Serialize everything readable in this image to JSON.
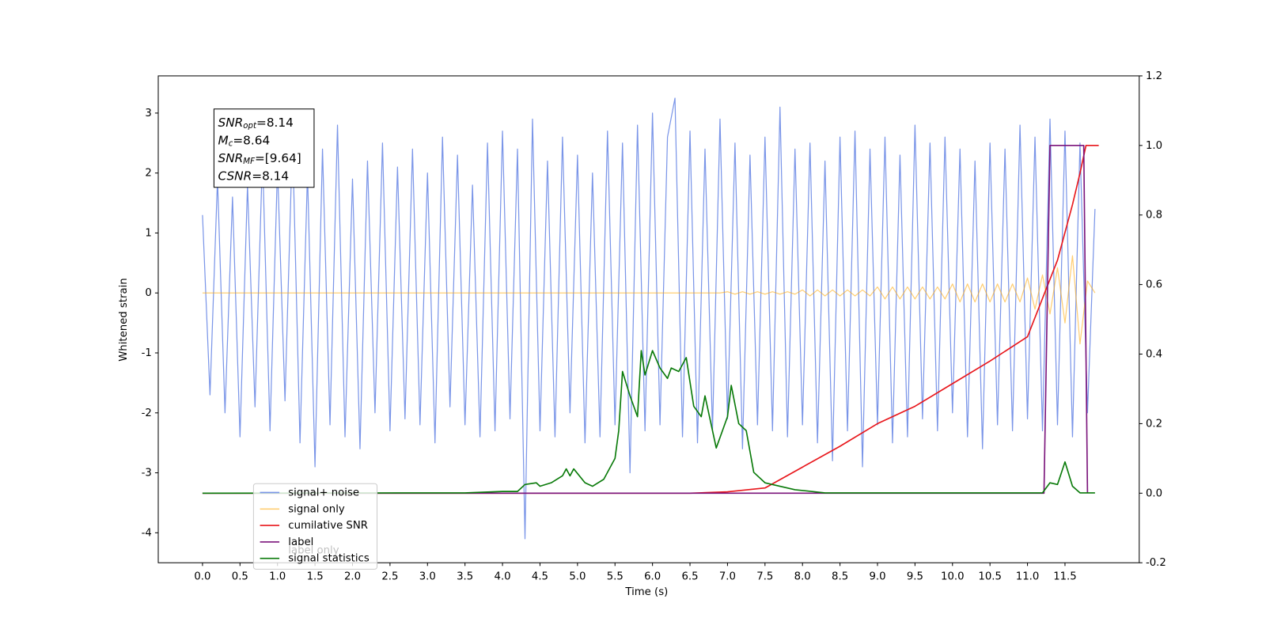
{
  "chart_data": {
    "type": "line",
    "xlabel": "Time (s)",
    "ylabel": "Whitened strain",
    "xlim": [
      -0.59,
      12.49
    ],
    "ylim": [
      -4.5,
      3.62
    ],
    "y2lim": [
      -0.2,
      1.2
    ],
    "xticks": [
      {
        "value": 0,
        "label": "0.0"
      },
      0.5,
      {
        "value": 1,
        "label": "1.0"
      },
      1.5,
      {
        "value": 2,
        "label": "2.0"
      },
      2.5,
      {
        "value": 3,
        "label": "3.0"
      },
      3.5,
      {
        "value": 4,
        "label": "4.0"
      },
      4.5,
      {
        "value": 5,
        "label": "5.0"
      },
      5.5,
      {
        "value": 6,
        "label": "6.0"
      },
      6.5,
      {
        "value": 7,
        "label": "7.0"
      },
      7.5,
      {
        "value": 8,
        "label": "8.0"
      },
      8.5,
      {
        "value": 9,
        "label": "9.0"
      },
      9.5,
      {
        "value": 10,
        "label": "10.0"
      },
      10.5,
      {
        "value": 11,
        "label": "11.0"
      },
      11.5
    ],
    "yticks": [
      -4,
      -3,
      -2,
      -1,
      0,
      1,
      2,
      3
    ],
    "y2ticks": [
      -0.2,
      {
        "value": 0,
        "label": "0.0"
      },
      0.2,
      0.4,
      0.6,
      0.8,
      {
        "value": 1,
        "label": "1.0"
      },
      1.2
    ],
    "legend": "lower left",
    "legend_hidden_text": [
      "label only"
    ],
    "annotation": [
      {
        "var": "SNR",
        "sub": "opt",
        "value": "=8.14"
      },
      {
        "var": "M",
        "sub": "c",
        "value": "=8.64"
      },
      {
        "var": "SNR",
        "sub": "MF",
        "value": "=[9.64]"
      },
      {
        "var": "CSNR",
        "value": "=8.14"
      }
    ],
    "x": [
      0.0,
      0.1,
      0.2,
      0.3,
      0.4,
      0.5,
      0.6,
      0.7,
      0.8,
      0.9,
      1.0,
      1.1,
      1.2,
      1.3,
      1.4,
      1.5,
      1.6,
      1.7,
      1.8,
      1.9,
      2.0,
      2.1,
      2.2,
      2.3,
      2.4,
      2.5,
      2.6,
      2.7,
      2.8,
      2.9,
      3.0,
      3.1,
      3.2,
      3.3,
      3.4,
      3.5,
      3.6,
      3.7,
      3.8,
      3.9,
      4.0,
      4.1,
      4.2,
      4.3,
      4.4,
      4.5,
      4.6,
      4.7,
      4.8,
      4.9,
      5.0,
      5.1,
      5.2,
      5.3,
      5.4,
      5.5,
      5.6,
      5.7,
      5.8,
      5.9,
      6.0,
      6.1,
      6.2,
      6.3,
      6.4,
      6.5,
      6.6,
      6.7,
      6.8,
      6.9,
      7.0,
      7.1,
      7.2,
      7.3,
      7.4,
      7.5,
      7.6,
      7.7,
      7.8,
      7.9,
      8.0,
      8.1,
      8.2,
      8.3,
      8.4,
      8.5,
      8.6,
      8.7,
      8.8,
      8.9,
      9.0,
      9.1,
      9.2,
      9.3,
      9.4,
      9.5,
      9.6,
      9.7,
      9.8,
      9.9,
      10.0,
      10.1,
      10.2,
      10.3,
      10.4,
      10.5,
      10.6,
      10.7,
      10.8,
      10.9,
      11.0,
      11.1,
      11.2,
      11.3,
      11.4,
      11.5,
      11.6,
      11.7,
      11.8,
      11.9
    ],
    "series": [
      {
        "name": "signal+ noise",
        "color": "#7a95e8",
        "axis": "y",
        "values": [
          1.3,
          -1.7,
          1.9,
          -2.0,
          1.6,
          -2.4,
          1.8,
          -1.9,
          2.3,
          -2.3,
          2.1,
          -1.8,
          2.6,
          -2.5,
          2.0,
          -2.9,
          2.4,
          -2.2,
          2.8,
          -2.4,
          1.9,
          -2.6,
          2.2,
          -2.0,
          2.5,
          -2.3,
          2.1,
          -2.1,
          2.4,
          -2.2,
          2.0,
          -2.5,
          2.6,
          -1.9,
          2.3,
          -2.2,
          1.8,
          -2.4,
          2.5,
          -2.3,
          2.7,
          -2.1,
          2.4,
          -4.1,
          2.9,
          -2.3,
          2.2,
          -2.4,
          2.6,
          -2.0,
          2.3,
          -2.5,
          2.0,
          -2.4,
          2.7,
          -2.2,
          2.5,
          -3.0,
          2.8,
          -2.3,
          3.0,
          -2.2,
          2.6,
          3.25,
          -2.4,
          2.7,
          -2.5,
          2.4,
          -2.3,
          2.9,
          -2.1,
          2.5,
          -2.6,
          2.3,
          -2.2,
          2.6,
          -2.3,
          3.1,
          -2.4,
          2.4,
          -2.2,
          2.5,
          -2.5,
          2.2,
          -2.8,
          2.6,
          -2.3,
          2.7,
          -2.9,
          2.4,
          -2.2,
          2.6,
          -2.5,
          2.3,
          -2.4,
          2.8,
          -2.1,
          2.5,
          -2.3,
          2.6,
          -2.0,
          2.4,
          -2.4,
          2.2,
          -2.6,
          2.5,
          -2.2,
          2.4,
          -2.3,
          2.8,
          -2.1,
          2.6,
          -2.3,
          2.9,
          -2.2,
          2.7,
          -2.4,
          2.5,
          -2.0,
          1.4
        ]
      },
      {
        "name": "signal only",
        "color": "#ffa500",
        "axis": "y",
        "values": [
          0,
          0,
          0,
          0,
          0,
          0,
          0,
          0,
          0,
          0,
          0,
          0,
          0,
          0,
          0,
          0,
          0,
          0,
          0,
          0,
          0,
          0,
          0,
          0,
          0,
          0,
          0,
          0,
          0,
          0,
          0,
          0,
          0,
          0,
          0,
          0,
          0,
          0,
          0,
          0,
          0,
          0,
          0,
          0,
          0,
          0,
          0,
          0,
          0,
          0,
          0,
          0,
          0,
          0,
          0,
          0,
          0,
          0,
          0,
          0,
          0,
          0,
          0,
          0,
          0,
          0,
          0,
          0,
          0,
          0,
          0.02,
          -0.02,
          0.02,
          -0.02,
          0.02,
          -0.02,
          0.02,
          -0.02,
          0.02,
          -0.02,
          0.05,
          -0.05,
          0.05,
          -0.05,
          0.05,
          -0.05,
          0.05,
          -0.05,
          0.05,
          -0.05,
          0.1,
          -0.1,
          0.1,
          -0.1,
          0.1,
          -0.1,
          0.1,
          -0.1,
          0.1,
          -0.1,
          0.15,
          -0.15,
          0.15,
          -0.15,
          0.15,
          -0.15,
          0.15,
          -0.15,
          0.15,
          -0.15,
          0.25,
          -0.27,
          0.3,
          -0.35,
          0.42,
          -0.5,
          0.62,
          -0.85,
          0.2,
          0
        ]
      },
      {
        "name": "cumilative SNR",
        "color": "#e8161b",
        "axis": "y2",
        "x": [
          0,
          6.5,
          7,
          7.5,
          8,
          8.5,
          9,
          9.5,
          10,
          10.5,
          11,
          11.2,
          11.4,
          11.6,
          11.7,
          11.78,
          11.95
        ],
        "values": [
          0,
          0,
          0.004,
          0.015,
          0.075,
          0.135,
          0.2,
          0.25,
          0.315,
          0.38,
          0.45,
          0.56,
          0.67,
          0.83,
          0.92,
          1.0,
          1.0
        ]
      },
      {
        "name": "label",
        "color": "#7b147b",
        "axis": "y2",
        "x": [
          0,
          11.22,
          11.3,
          11.75,
          11.8
        ],
        "values": [
          0,
          0,
          1,
          1,
          0
        ]
      },
      {
        "name": "signal statistics",
        "color": "#097a09",
        "axis": "y2",
        "x": [
          0,
          3.5,
          4.0,
          4.2,
          4.3,
          4.45,
          4.5,
          4.65,
          4.8,
          4.85,
          4.9,
          4.95,
          5.1,
          5.2,
          5.35,
          5.45,
          5.5,
          5.55,
          5.6,
          5.7,
          5.8,
          5.85,
          5.9,
          6.0,
          6.1,
          6.2,
          6.25,
          6.35,
          6.45,
          6.55,
          6.65,
          6.7,
          6.85,
          7.0,
          7.05,
          7.15,
          7.25,
          7.35,
          7.5,
          7.7,
          7.9,
          8.3,
          11.2,
          11.3,
          11.4,
          11.5,
          11.6,
          11.7,
          11.9
        ],
        "values": [
          0,
          0.001,
          0.005,
          0.005,
          0.025,
          0.03,
          0.02,
          0.03,
          0.05,
          0.07,
          0.05,
          0.07,
          0.03,
          0.02,
          0.04,
          0.08,
          0.1,
          0.18,
          0.35,
          0.28,
          0.22,
          0.41,
          0.34,
          0.41,
          0.36,
          0.33,
          0.36,
          0.35,
          0.39,
          0.25,
          0.22,
          0.28,
          0.13,
          0.22,
          0.31,
          0.2,
          0.18,
          0.06,
          0.03,
          0.02,
          0.01,
          0.001,
          0.001,
          0.03,
          0.025,
          0.09,
          0.02,
          0.001,
          0.001
        ]
      }
    ]
  }
}
